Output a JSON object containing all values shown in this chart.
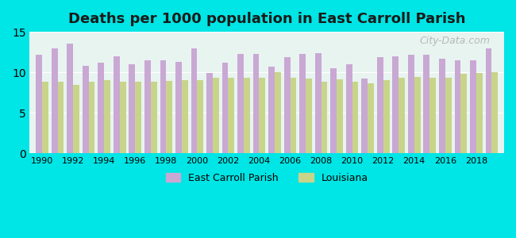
{
  "title": "Deaths per 1000 population in East Carroll Parish",
  "background_color": "#00e5e5",
  "plot_bg_color": "#e8f4f0",
  "years": [
    1990,
    1991,
    1992,
    1993,
    1994,
    1995,
    1996,
    1997,
    1998,
    1999,
    2000,
    2001,
    2002,
    2003,
    2004,
    2005,
    2006,
    2007,
    2008,
    2009,
    2010,
    2011,
    2012,
    2013,
    2014,
    2015,
    2016,
    2017,
    2018,
    2019
  ],
  "east_carroll": [
    12.2,
    13.0,
    13.5,
    10.8,
    11.2,
    12.0,
    11.0,
    11.5,
    11.5,
    11.3,
    13.0,
    9.9,
    11.2,
    12.3,
    12.3,
    10.7,
    11.9,
    12.3,
    12.4,
    10.5,
    11.0,
    9.2,
    11.9,
    12.0,
    12.2,
    12.2,
    11.7,
    11.5,
    11.5,
    13.0
  ],
  "louisiana": [
    8.8,
    8.8,
    8.5,
    8.8,
    9.0,
    8.8,
    8.8,
    8.8,
    8.9,
    9.0,
    9.0,
    9.3,
    9.3,
    9.3,
    9.3,
    10.0,
    9.3,
    9.2,
    8.8,
    9.1,
    8.8,
    8.6,
    9.0,
    9.3,
    9.4,
    9.3,
    9.3,
    9.8,
    9.9,
    10.0
  ],
  "parish_color": "#c9a8d4",
  "louisiana_color": "#c8d48a",
  "ylim": [
    0,
    15
  ],
  "yticks": [
    0,
    5,
    10,
    15
  ],
  "xlabel_years": [
    1990,
    1992,
    1994,
    1996,
    1998,
    2000,
    2002,
    2004,
    2006,
    2008,
    2010,
    2012,
    2014,
    2016,
    2018
  ],
  "legend_parish": "East Carroll Parish",
  "legend_louisiana": "Louisiana",
  "watermark": "City-Data.com"
}
